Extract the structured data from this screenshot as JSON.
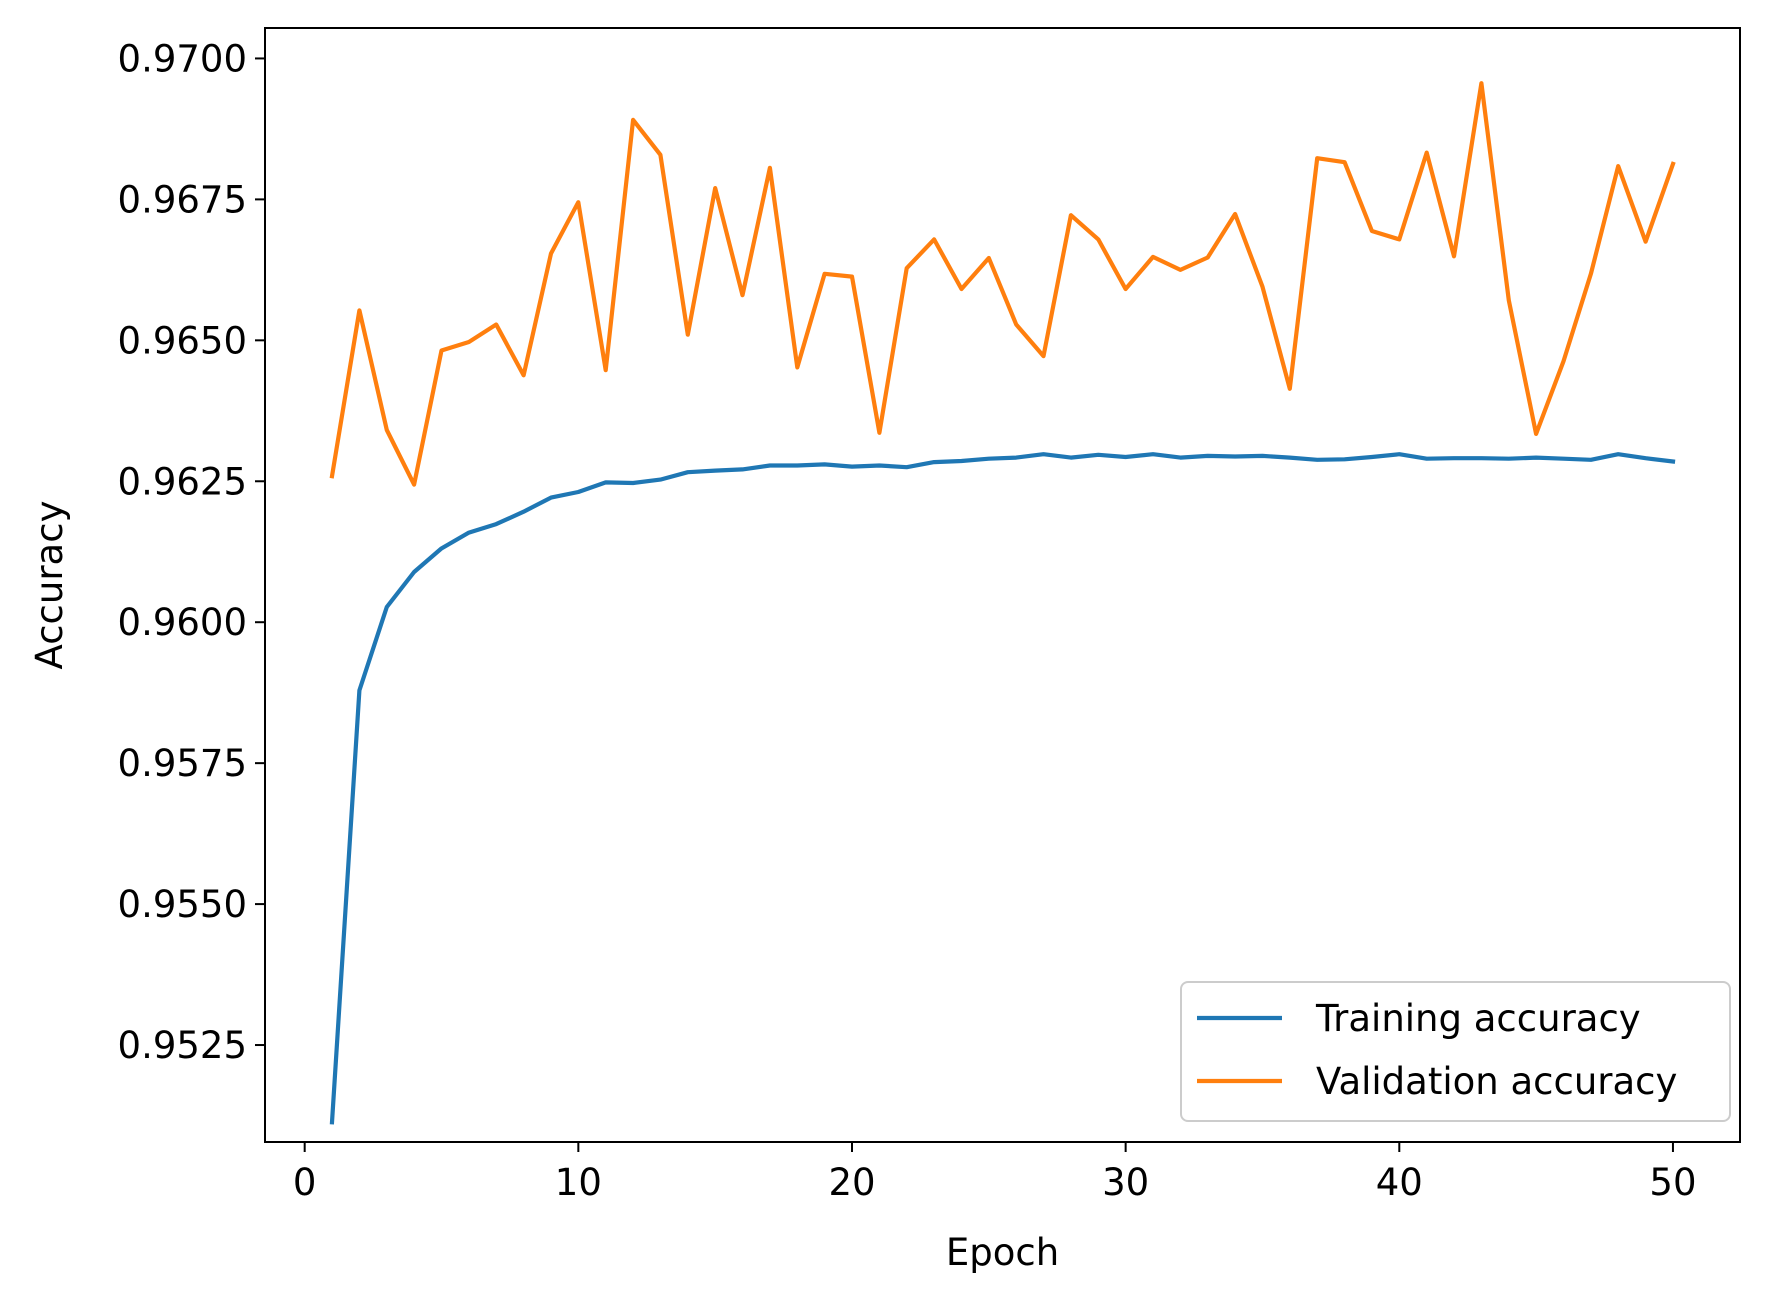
{
  "chart_data": {
    "type": "line",
    "title": "",
    "xlabel": "Epoch",
    "ylabel": "Accuracy",
    "xlim": [
      -1.45,
      52.45
    ],
    "ylim": [
      0.95078,
      0.97054
    ],
    "x_ticks": [
      0,
      10,
      20,
      30,
      40,
      50
    ],
    "x_tick_labels": [
      "0",
      "10",
      "20",
      "30",
      "40",
      "50"
    ],
    "y_ticks": [
      0.9525,
      0.955,
      0.9575,
      0.96,
      0.9625,
      0.965,
      0.9675,
      0.97
    ],
    "y_tick_labels": [
      "0.9525",
      "0.9550",
      "0.9575",
      "0.9600",
      "0.9625",
      "0.9650",
      "0.9675",
      "0.9700"
    ],
    "grid": false,
    "legend_position": "lower-right",
    "x": [
      1,
      2,
      3,
      4,
      5,
      6,
      7,
      8,
      9,
      10,
      11,
      12,
      13,
      14,
      15,
      16,
      17,
      18,
      19,
      20,
      21,
      22,
      23,
      24,
      25,
      26,
      27,
      28,
      29,
      30,
      31,
      32,
      33,
      34,
      35,
      36,
      37,
      38,
      39,
      40,
      41,
      42,
      43,
      44,
      45,
      46,
      47,
      48,
      49,
      50
    ],
    "series": [
      {
        "name": "Training accuracy",
        "color": "#1f77b4",
        "values": [
          0.95113,
          0.95879,
          0.96027,
          0.96089,
          0.96131,
          0.96159,
          0.96174,
          0.96196,
          0.96221,
          0.96231,
          0.96248,
          0.96247,
          0.96253,
          0.96266,
          0.96269,
          0.96271,
          0.96278,
          0.96278,
          0.9628,
          0.96276,
          0.96278,
          0.96275,
          0.96284,
          0.96286,
          0.9629,
          0.96292,
          0.96298,
          0.96292,
          0.96297,
          0.96293,
          0.96298,
          0.96292,
          0.96295,
          0.96294,
          0.96295,
          0.96292,
          0.96288,
          0.96289,
          0.96293,
          0.96298,
          0.9629,
          0.96291,
          0.96291,
          0.9629,
          0.96292,
          0.9629,
          0.96288,
          0.96298,
          0.96291,
          0.96285
        ]
      },
      {
        "name": "Validation accuracy",
        "color": "#ff7f0e",
        "values": [
          0.96259,
          0.96553,
          0.96341,
          0.96244,
          0.96482,
          0.96497,
          0.96528,
          0.96438,
          0.96654,
          0.96745,
          0.96447,
          0.96891,
          0.96829,
          0.9651,
          0.9677,
          0.9658,
          0.96806,
          0.96452,
          0.96618,
          0.96613,
          0.96336,
          0.96628,
          0.96679,
          0.96591,
          0.96646,
          0.96528,
          0.96472,
          0.96722,
          0.96679,
          0.96591,
          0.96648,
          0.96625,
          0.96647,
          0.96724,
          0.96595,
          0.96414,
          0.96823,
          0.96816,
          0.96694,
          0.96679,
          0.96833,
          0.96649,
          0.96956,
          0.96571,
          0.96334,
          0.96463,
          0.96618,
          0.96809,
          0.96675,
          0.96813
        ]
      }
    ]
  }
}
